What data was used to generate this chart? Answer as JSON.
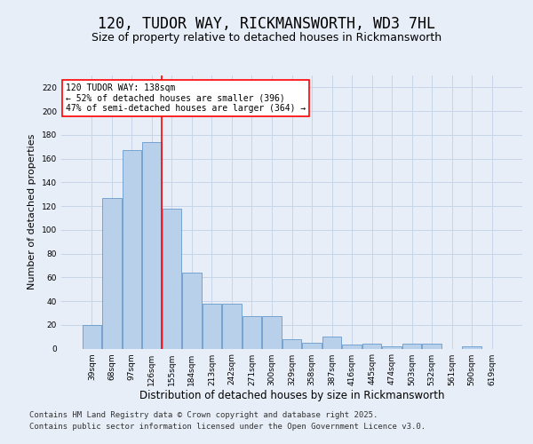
{
  "title": "120, TUDOR WAY, RICKMANSWORTH, WD3 7HL",
  "subtitle": "Size of property relative to detached houses in Rickmansworth",
  "xlabel": "Distribution of detached houses by size in Rickmansworth",
  "ylabel": "Number of detached properties",
  "categories": [
    "39sqm",
    "68sqm",
    "97sqm",
    "126sqm",
    "155sqm",
    "184sqm",
    "213sqm",
    "242sqm",
    "271sqm",
    "300sqm",
    "329sqm",
    "358sqm",
    "387sqm",
    "416sqm",
    "445sqm",
    "474sqm",
    "503sqm",
    "532sqm",
    "561sqm",
    "590sqm",
    "619sqm"
  ],
  "values": [
    20,
    127,
    167,
    174,
    118,
    64,
    38,
    38,
    27,
    27,
    8,
    5,
    10,
    3,
    4,
    2,
    4,
    4,
    0,
    2,
    0
  ],
  "bar_color": "#b8d0ea",
  "bar_edgecolor": "#6699cc",
  "bar_linewidth": 0.6,
  "grid_color": "#c8d4e8",
  "background_color": "#e8eef8",
  "vline_color": "red",
  "vline_linewidth": 1.2,
  "vline_x_index": 3,
  "annotation_text": "120 TUDOR WAY: 138sqm\n← 52% of detached houses are smaller (396)\n47% of semi-detached houses are larger (364) →",
  "annotation_box_color": "white",
  "annotation_box_edgecolor": "red",
  "ylim": [
    0,
    230
  ],
  "yticks": [
    0,
    20,
    40,
    60,
    80,
    100,
    120,
    140,
    160,
    180,
    200,
    220
  ],
  "footer_line1": "Contains HM Land Registry data © Crown copyright and database right 2025.",
  "footer_line2": "Contains public sector information licensed under the Open Government Licence v3.0.",
  "title_fontsize": 12,
  "subtitle_fontsize": 9,
  "xlabel_fontsize": 8.5,
  "ylabel_fontsize": 8,
  "tick_fontsize": 6.5,
  "annotation_fontsize": 7,
  "footer_fontsize": 6.5
}
